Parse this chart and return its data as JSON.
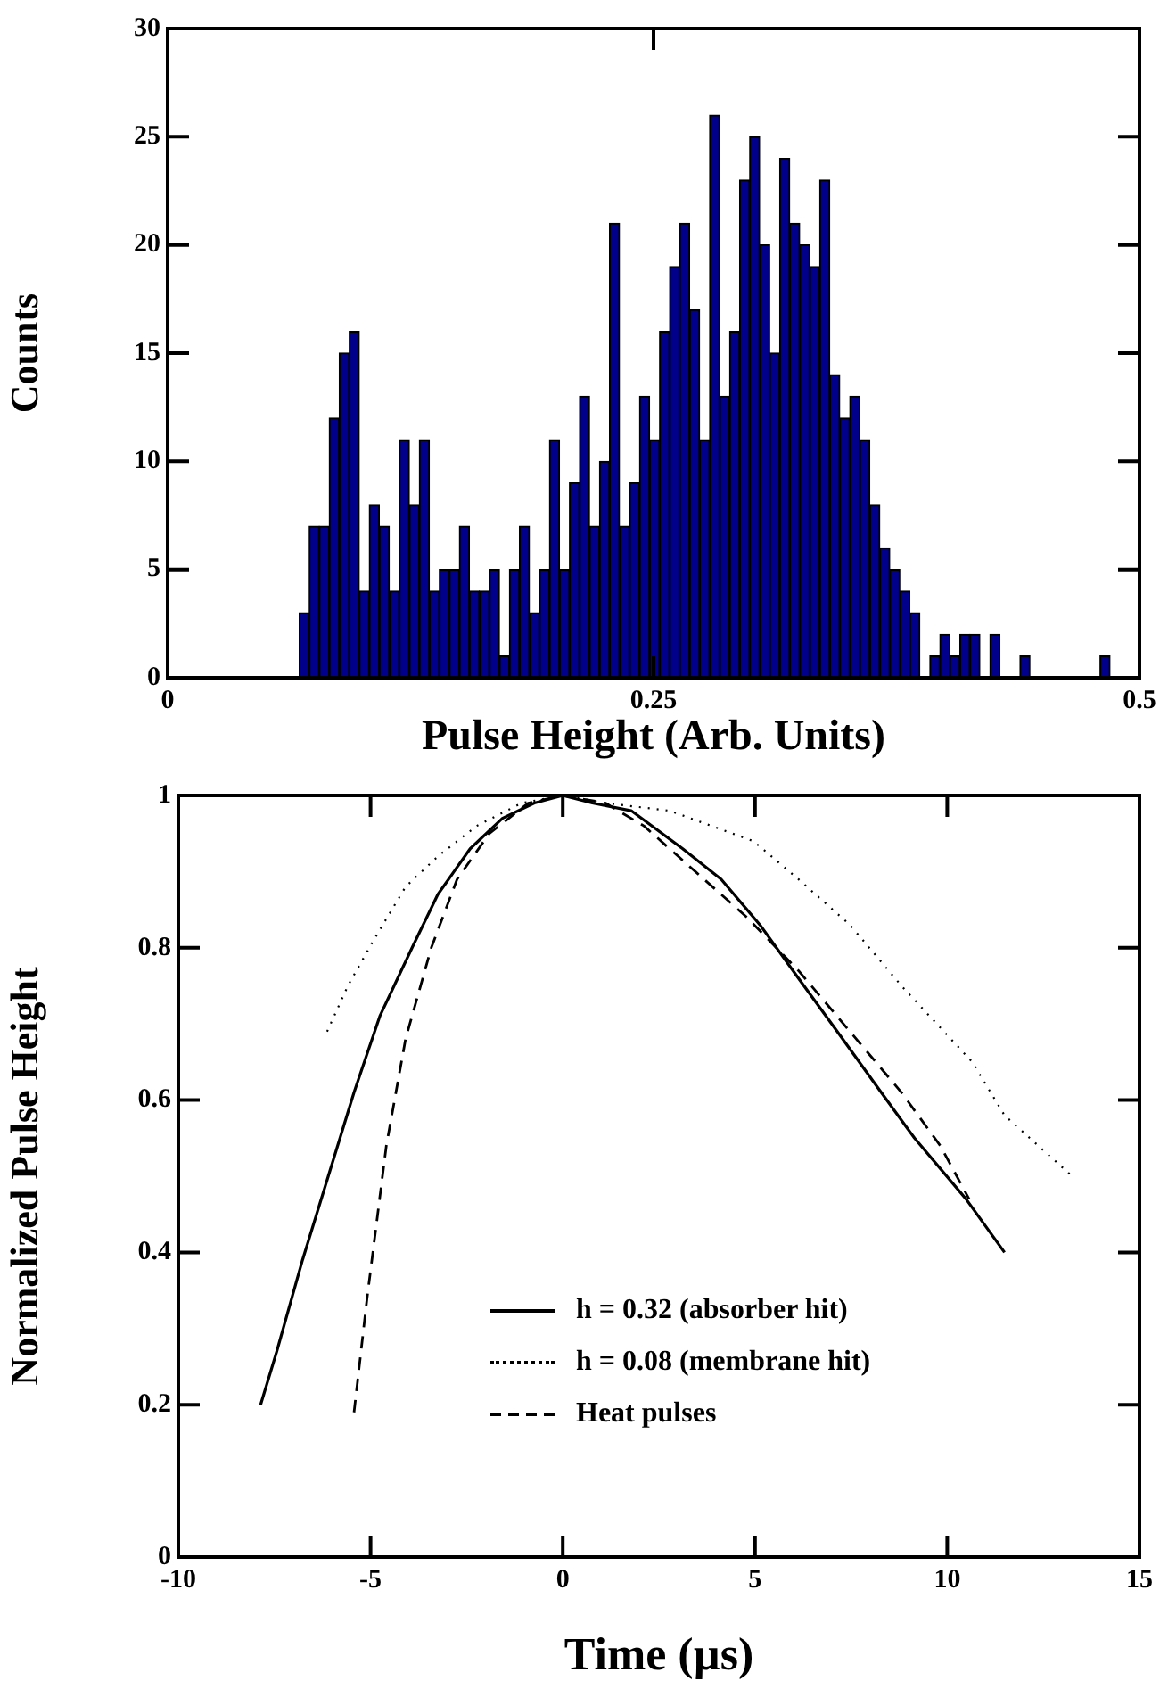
{
  "chart_data": [
    {
      "type": "histogram",
      "xlabel": "Pulse Height (Arb. Units)",
      "ylabel": "Counts",
      "color": "#00008b",
      "bins": [
        0.0677,
        0.07285,
        0.078,
        0.08315,
        0.0883,
        0.09345,
        0.0986,
        0.10375,
        0.1089,
        0.11405,
        0.1192,
        0.12435,
        0.1295,
        0.13465,
        0.1398,
        0.14495,
        0.1501,
        0.15525,
        0.1604,
        0.16555,
        0.1707,
        0.17585,
        0.181,
        0.18615,
        0.1913,
        0.19645,
        0.2016,
        0.20675,
        0.2119,
        0.21705,
        0.2222,
        0.22735,
        0.2325,
        0.23765,
        0.2428,
        0.24795,
        0.2531,
        0.25825,
        0.2634,
        0.26855,
        0.2737,
        0.27885,
        0.284,
        0.28915,
        0.2943,
        0.29945,
        0.3046,
        0.30975,
        0.3149,
        0.32005,
        0.3252,
        0.33035,
        0.3355,
        0.34065,
        0.3458,
        0.35095,
        0.3561,
        0.36125,
        0.3664,
        0.37155,
        0.3767,
        0.38185,
        0.387,
        0.39215,
        0.3973,
        0.40245,
        0.4076,
        0.41275,
        0.4179,
        0.42305,
        0.4282,
        0.43335,
        0.4385,
        0.44365,
        0.4488,
        0.45395,
        0.4591,
        0.46425,
        0.4694,
        0.47455,
        0.4797,
        0.48485
      ],
      "values": [
        3,
        7,
        7,
        12,
        15,
        16,
        4,
        8,
        7,
        4,
        11,
        8,
        11,
        4,
        5,
        5,
        7,
        4,
        4,
        5,
        1,
        5,
        7,
        3,
        5,
        11,
        5,
        9,
        13,
        7,
        10,
        21,
        7,
        9,
        13,
        11,
        16,
        19,
        21,
        17,
        11,
        26,
        13,
        16,
        23,
        25,
        20,
        15,
        24,
        21,
        20,
        19,
        23,
        14,
        12,
        13,
        11,
        8,
        6,
        5,
        4,
        3,
        0,
        1,
        2,
        1,
        2,
        2,
        0,
        2,
        0,
        0,
        1,
        0,
        0,
        0,
        0,
        0,
        0,
        0,
        1
      ],
      "xlim": [
        0,
        0.5
      ],
      "xticks": [
        0,
        0.25,
        0.5
      ],
      "ylim": [
        0,
        30
      ],
      "yticks": [
        0,
        5,
        10,
        15,
        20,
        25,
        30
      ],
      "grid": false
    },
    {
      "type": "line",
      "xlabel": "Time (µs)",
      "ylabel": "Normalized Pulse Height",
      "legend": "bottom",
      "marker": "none",
      "xlim": [
        -10,
        15
      ],
      "xticks": [
        -10,
        -5,
        0,
        5,
        10,
        15
      ],
      "ylim": [
        0,
        1
      ],
      "yticks": [
        0,
        0.2,
        0.4,
        0.6,
        0.8,
        1
      ],
      "grid": false,
      "series": [
        {
          "name": "h = 0.32 (absorber hit)",
          "color": "#000000",
          "line_style": "solid",
          "x": [
            -7.86,
            -7.44,
            -6.77,
            -6.1,
            -5.43,
            -4.76,
            -3.92,
            -3.25,
            -2.41,
            -1.57,
            -0.74,
            0,
            0.77,
            1.78,
            3.12,
            4.12,
            5.13,
            6.13,
            7.14,
            8.14,
            9.15,
            10.49,
            11.49
          ],
          "values": [
            0.2,
            0.27,
            0.39,
            0.5,
            0.61,
            0.71,
            0.8,
            0.87,
            0.93,
            0.97,
            0.99,
            1,
            0.99,
            0.98,
            0.93,
            0.89,
            0.83,
            0.76,
            0.69,
            0.62,
            0.55,
            0.47,
            0.4
          ]
        },
        {
          "name": "h = 0.08 (membrane hit)",
          "color": "#000000",
          "line_style": "dotted",
          "x": [
            -6.13,
            -5.59,
            -4.92,
            -4.09,
            -3.25,
            -2.24,
            -1.07,
            0,
            1.11,
            2.78,
            4.96,
            6.13,
            7.47,
            8.81,
            10.65,
            11.49,
            13.25
          ],
          "values": [
            0.69,
            0.75,
            0.81,
            0.88,
            0.92,
            0.96,
            0.99,
            1,
            0.99,
            0.98,
            0.94,
            0.89,
            0.83,
            0.75,
            0.65,
            0.58,
            0.5
          ]
        },
        {
          "name": "Heat pulses",
          "color": "#000000",
          "line_style": "dashed",
          "x": [
            -5.43,
            -5.09,
            -4.59,
            -4.09,
            -3.42,
            -2.75,
            -1.91,
            -0.9,
            0,
            1.11,
            2.11,
            3.45,
            4.79,
            6.13,
            7.47,
            8.81,
            9.82,
            10.57
          ],
          "values": [
            0.19,
            0.34,
            0.54,
            0.68,
            0.8,
            0.89,
            0.95,
            0.99,
            1,
            0.99,
            0.96,
            0.9,
            0.84,
            0.77,
            0.69,
            0.61,
            0.54,
            0.47
          ]
        }
      ]
    }
  ]
}
